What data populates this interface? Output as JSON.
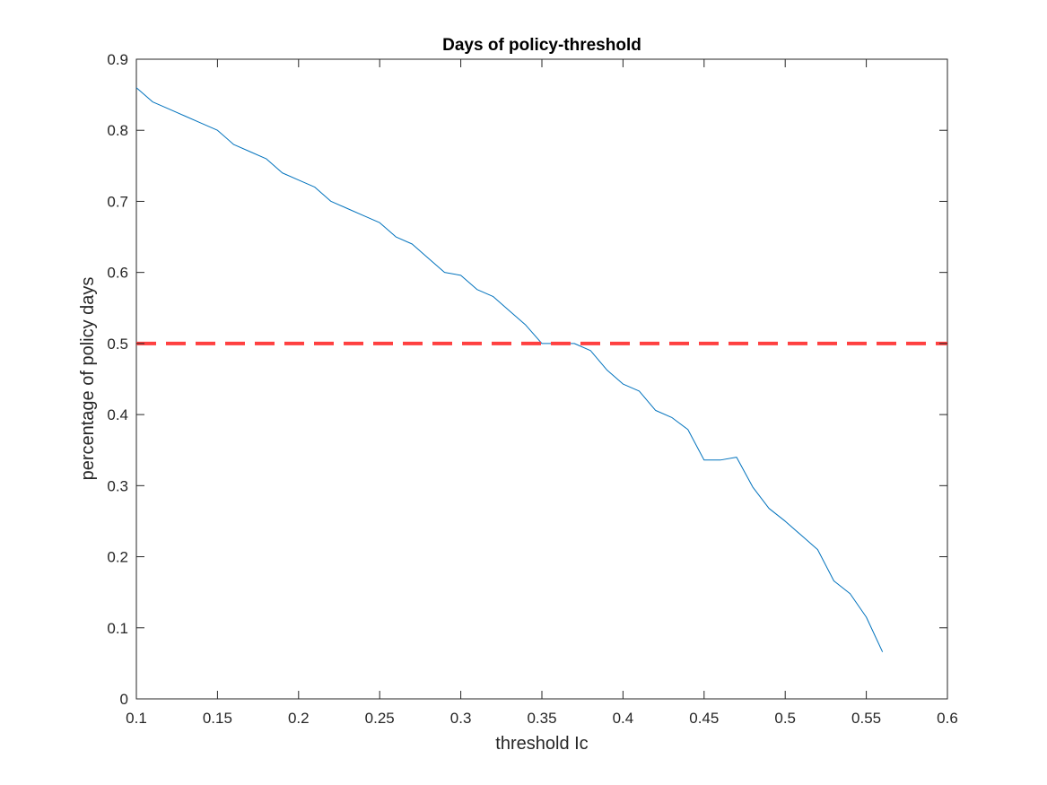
{
  "chart_data": {
    "type": "line",
    "title": "Days of policy-threshold",
    "xlabel": "threshold Ic",
    "ylabel": "percentage of policy days",
    "xlim": [
      0.1,
      0.6
    ],
    "ylim": [
      0,
      0.9
    ],
    "xticks": [
      0.1,
      0.15,
      0.2,
      0.25,
      0.3,
      0.35,
      0.4,
      0.45,
      0.5,
      0.55,
      0.6
    ],
    "xtick_labels": [
      "0.1",
      "0.15",
      "0.2",
      "0.25",
      "0.3",
      "0.35",
      "0.4",
      "0.45",
      "0.5",
      "0.55",
      "0.6"
    ],
    "yticks": [
      0,
      0.1,
      0.2,
      0.3,
      0.4,
      0.5,
      0.6,
      0.7,
      0.8,
      0.9
    ],
    "ytick_labels": [
      "0",
      "0.1",
      "0.2",
      "0.3",
      "0.4",
      "0.5",
      "0.6",
      "0.7",
      "0.8",
      "0.9"
    ],
    "grid": false,
    "series": [
      {
        "color": "#0072BD",
        "style": "solid",
        "x": [
          0.1,
          0.11,
          0.12,
          0.13,
          0.14,
          0.15,
          0.16,
          0.17,
          0.18,
          0.19,
          0.2,
          0.21,
          0.22,
          0.23,
          0.24,
          0.25,
          0.26,
          0.27,
          0.28,
          0.29,
          0.3,
          0.31,
          0.32,
          0.33,
          0.34,
          0.35,
          0.36,
          0.37,
          0.38,
          0.39,
          0.4,
          0.41,
          0.42,
          0.43,
          0.44,
          0.45,
          0.46,
          0.47,
          0.48,
          0.49,
          0.5,
          0.51,
          0.52,
          0.53,
          0.54,
          0.55,
          0.56
        ],
        "y": [
          0.86,
          0.84,
          0.83,
          0.82,
          0.81,
          0.8,
          0.78,
          0.77,
          0.76,
          0.74,
          0.73,
          0.72,
          0.7,
          0.69,
          0.68,
          0.67,
          0.65,
          0.64,
          0.62,
          0.6,
          0.596,
          0.576,
          0.566,
          0.546,
          0.526,
          0.5,
          0.5,
          0.5,
          0.49,
          0.463,
          0.443,
          0.433,
          0.406,
          0.396,
          0.379,
          0.336,
          0.336,
          0.34,
          0.298,
          0.268,
          0.25,
          0.23,
          0.21,
          0.166,
          0.148,
          0.115,
          0.066
        ]
      },
      {
        "color": "#FF4040",
        "style": "dashed",
        "x": [
          0.1,
          0.6
        ],
        "y": [
          0.5,
          0.5
        ]
      }
    ]
  }
}
